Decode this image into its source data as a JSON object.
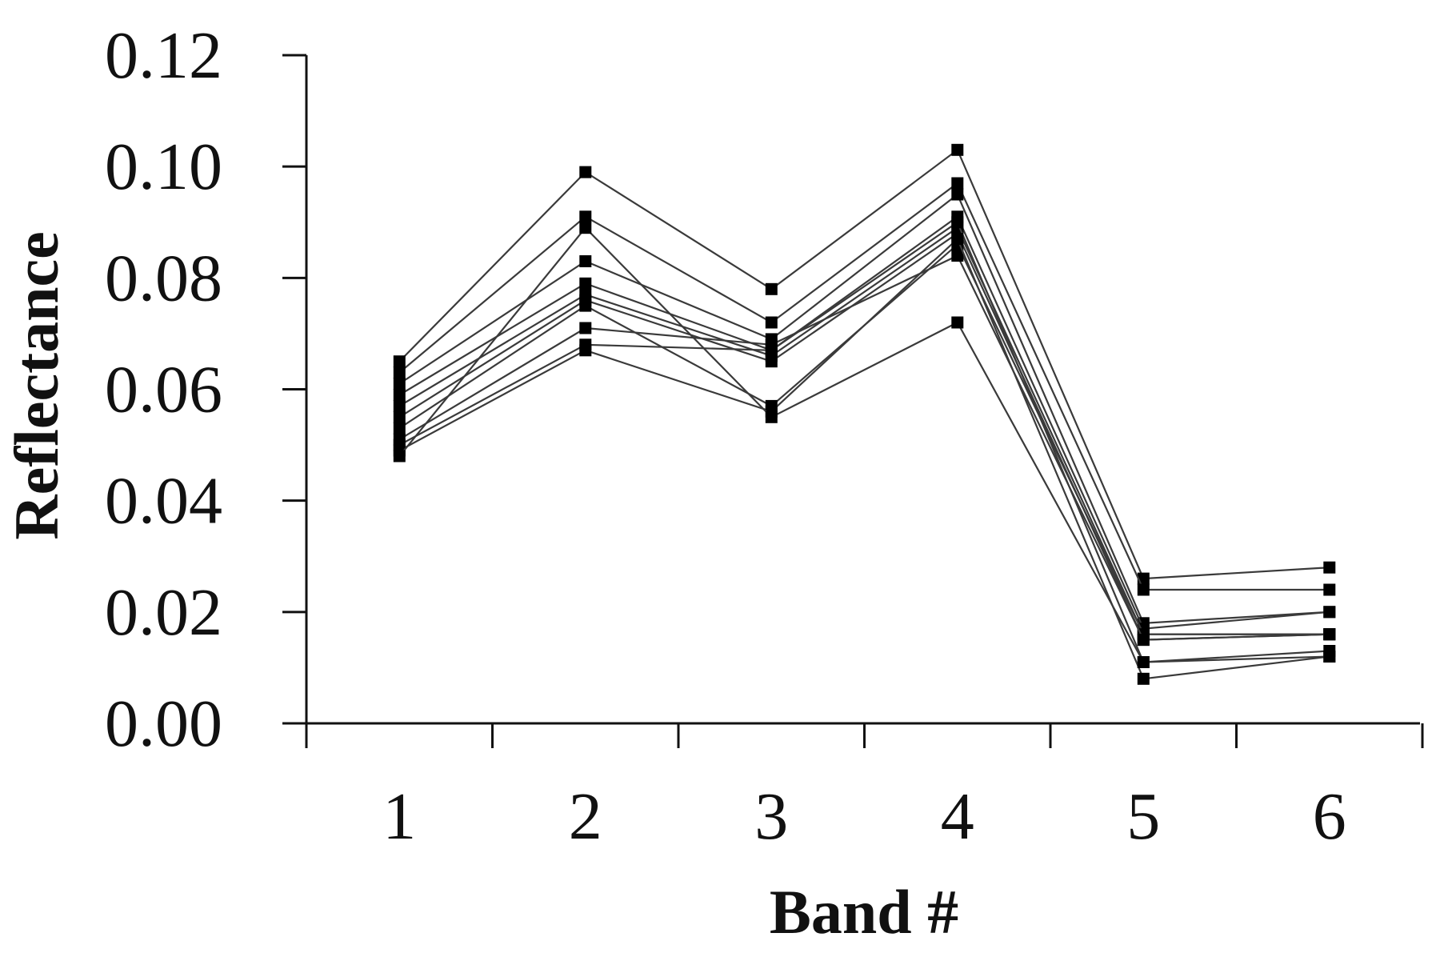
{
  "chart_data": {
    "type": "line",
    "title": "",
    "xlabel": "Band #",
    "ylabel": "Reflectance",
    "x": [
      1,
      2,
      3,
      4,
      5,
      6
    ],
    "x_tick_labels": [
      "1",
      "2",
      "3",
      "4",
      "5",
      "6"
    ],
    "y_tick_labels": [
      "0.00",
      "0.02",
      "0.04",
      "0.06",
      "0.08",
      "0.10",
      "0.12"
    ],
    "ylim": [
      0,
      0.12
    ],
    "grid": false,
    "legend": "none",
    "line_color": "#3a3a3a",
    "marker_color": "#000000",
    "series": [
      {
        "values": [
          0.065,
          0.099,
          0.078,
          0.103,
          0.026,
          0.028
        ]
      },
      {
        "values": [
          0.063,
          0.091,
          0.072,
          0.097,
          0.024,
          0.024
        ]
      },
      {
        "values": [
          0.061,
          0.083,
          0.069,
          0.095,
          0.018,
          0.02
        ]
      },
      {
        "values": [
          0.059,
          0.079,
          0.067,
          0.091,
          0.017,
          0.02
        ]
      },
      {
        "values": [
          0.057,
          0.077,
          0.066,
          0.089,
          0.016,
          0.016
        ]
      },
      {
        "values": [
          0.055,
          0.076,
          0.065,
          0.088,
          0.015,
          0.016
        ]
      },
      {
        "values": [
          0.053,
          0.075,
          0.057,
          0.086,
          0.016,
          0.016
        ]
      },
      {
        "values": [
          0.051,
          0.071,
          0.068,
          0.084,
          0.015,
          0.016
        ]
      },
      {
        "values": [
          0.05,
          0.068,
          0.067,
          0.09,
          0.011,
          0.013
        ]
      },
      {
        "values": [
          0.049,
          0.067,
          0.056,
          0.087,
          0.008,
          0.012
        ]
      },
      {
        "values": [
          0.048,
          0.089,
          0.055,
          0.072,
          0.011,
          0.012
        ]
      }
    ]
  }
}
